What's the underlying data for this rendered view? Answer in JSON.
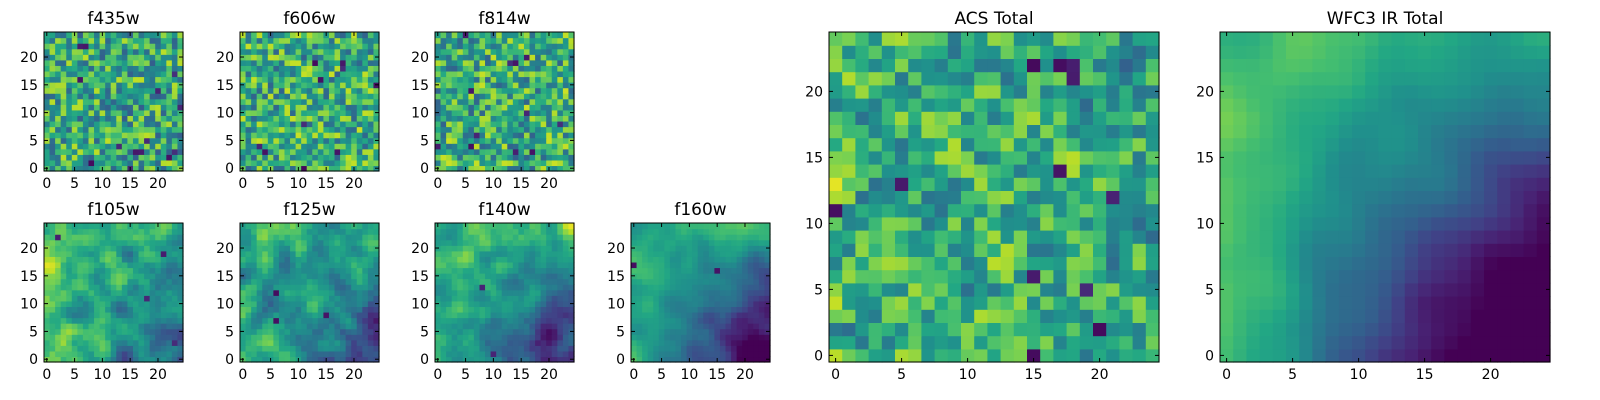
{
  "chart_data": [
    {
      "type": "heatmap",
      "title": "f435w",
      "xticks": [
        "0",
        "5",
        "10",
        "15",
        "20"
      ],
      "yticks": [
        "0",
        "5",
        "10",
        "15",
        "20"
      ],
      "xlim": [
        0,
        25
      ],
      "ylim": [
        0,
        25
      ],
      "rows": 25,
      "cols": 25,
      "colormap": "viridis",
      "texture": {
        "mean": 0.6,
        "noise": 0.3,
        "smooth": 0.0,
        "lowDots": 14,
        "grad": [
          0,
          0
        ]
      }
    },
    {
      "type": "heatmap",
      "title": "f606w",
      "xticks": [
        "0",
        "5",
        "10",
        "15",
        "20"
      ],
      "yticks": [
        "0",
        "5",
        "10",
        "15",
        "20"
      ],
      "xlim": [
        0,
        25
      ],
      "ylim": [
        0,
        25
      ],
      "rows": 25,
      "cols": 25,
      "colormap": "viridis",
      "texture": {
        "mean": 0.62,
        "noise": 0.3,
        "smooth": 0.0,
        "lowDots": 10,
        "grad": [
          0,
          0
        ]
      }
    },
    {
      "type": "heatmap",
      "title": "f814w",
      "xticks": [
        "0",
        "5",
        "10",
        "15",
        "20"
      ],
      "yticks": [
        "0",
        "5",
        "10",
        "15",
        "20"
      ],
      "xlim": [
        0,
        25
      ],
      "ylim": [
        0,
        25
      ],
      "rows": 25,
      "cols": 25,
      "colormap": "viridis",
      "texture": {
        "mean": 0.62,
        "noise": 0.3,
        "smooth": 0.0,
        "lowDots": 12,
        "grad": [
          0,
          0
        ]
      }
    },
    {
      "type": "heatmap",
      "title": "f105w",
      "xticks": [
        "0",
        "5",
        "10",
        "15",
        "20"
      ],
      "yticks": [
        "0",
        "5",
        "10",
        "15",
        "20"
      ],
      "xlim": [
        0,
        25
      ],
      "ylim": [
        0,
        25
      ],
      "rows": 25,
      "cols": 25,
      "colormap": "viridis",
      "texture": {
        "mean": 0.68,
        "noise": 0.3,
        "smooth": 0.55,
        "lowDots": 4,
        "grad": [
          0.0,
          -0.25
        ]
      }
    },
    {
      "type": "heatmap",
      "title": "f125w",
      "xticks": [
        "0",
        "5",
        "10",
        "15",
        "20"
      ],
      "yticks": [
        "0",
        "5",
        "10",
        "15",
        "20"
      ],
      "xlim": [
        0,
        25
      ],
      "ylim": [
        0,
        25
      ],
      "rows": 25,
      "cols": 25,
      "colormap": "viridis",
      "texture": {
        "mean": 0.65,
        "noise": 0.3,
        "smooth": 0.55,
        "lowDots": 3,
        "grad": [
          0.0,
          -0.3
        ]
      }
    },
    {
      "type": "heatmap",
      "title": "f140w",
      "xticks": [
        "0",
        "5",
        "10",
        "15",
        "20"
      ],
      "yticks": [
        "0",
        "5",
        "10",
        "15",
        "20"
      ],
      "xlim": [
        0,
        25
      ],
      "ylim": [
        0,
        25
      ],
      "rows": 25,
      "cols": 25,
      "colormap": "viridis",
      "texture": {
        "mean": 0.66,
        "noise": 0.28,
        "smooth": 0.6,
        "lowDots": 3,
        "grad": [
          0.0,
          -0.35
        ]
      }
    },
    {
      "type": "heatmap",
      "title": "f160w",
      "xticks": [
        "0",
        "5",
        "10",
        "15",
        "20"
      ],
      "yticks": [
        "0",
        "5",
        "10",
        "15",
        "20"
      ],
      "xlim": [
        0,
        25
      ],
      "ylim": [
        0,
        25
      ],
      "rows": 25,
      "cols": 25,
      "colormap": "viridis",
      "texture": {
        "mean": 0.62,
        "noise": 0.2,
        "smooth": 0.7,
        "lowDots": 2,
        "grad": [
          0.0,
          -0.5
        ]
      }
    },
    {
      "type": "heatmap",
      "title": "ACS Total",
      "xticks": [
        "0",
        "5",
        "10",
        "15",
        "20"
      ],
      "yticks": [
        "0",
        "5",
        "10",
        "15",
        "20"
      ],
      "xlim": [
        0,
        25
      ],
      "ylim": [
        0,
        25
      ],
      "rows": 25,
      "cols": 25,
      "colormap": "viridis",
      "texture": {
        "mean": 0.62,
        "noise": 0.24,
        "smooth": 0.2,
        "lowDots": 12,
        "grad": [
          0,
          0
        ]
      }
    },
    {
      "type": "heatmap",
      "title": "WFC3 IR Total",
      "xticks": [
        "0",
        "5",
        "10",
        "15",
        "20"
      ],
      "yticks": [
        "0",
        "5",
        "10",
        "15",
        "20"
      ],
      "xlim": [
        0,
        25
      ],
      "ylim": [
        0,
        25
      ],
      "rows": 25,
      "cols": 25,
      "colormap": "viridis",
      "texture": {
        "mean": 0.64,
        "noise": 0.12,
        "smooth": 0.8,
        "lowDots": 0,
        "grad": [
          -0.2,
          -0.55
        ]
      }
    }
  ]
}
